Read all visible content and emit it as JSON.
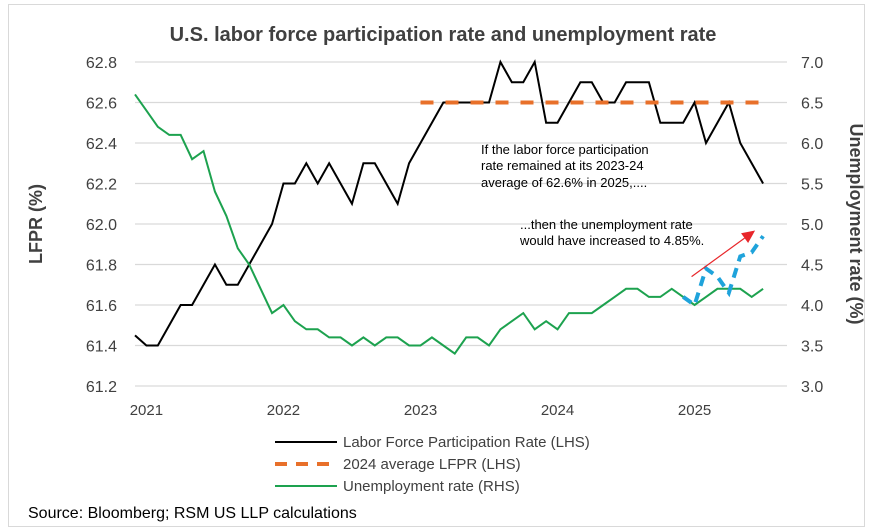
{
  "chart_data": {
    "type": "line",
    "title": "U.S. labor force participation rate and unemployment rate",
    "ylabel_left": "LFPR (%)",
    "ylabel_right": "Unemployment rate (%)",
    "ylim_left": [
      61.2,
      62.8
    ],
    "ylim_right": [
      3.0,
      7.0
    ],
    "yticks_left": [
      "62.8",
      "62.6",
      "62.4",
      "62.2",
      "62.0",
      "61.8",
      "61.6",
      "61.4",
      "61.2"
    ],
    "yticks_right": [
      "7.0",
      "6.5",
      "6.0",
      "5.5",
      "5.0",
      "4.5",
      "4.0",
      "3.5",
      "3.0"
    ],
    "xticks": [
      "2021",
      "2022",
      "2023",
      "2024",
      "2025"
    ],
    "grid": true,
    "legend_position": "bottom",
    "start_month": "2020-12",
    "series": [
      {
        "name": "Labor Force Participation Rate (LHS)",
        "axis": "left",
        "color": "#000000",
        "style": "solid",
        "start": "2020-12",
        "values": [
          61.45,
          61.4,
          61.4,
          61.5,
          61.6,
          61.6,
          61.7,
          61.8,
          61.7,
          61.7,
          61.8,
          61.9,
          62.0,
          62.2,
          62.2,
          62.3,
          62.2,
          62.3,
          62.2,
          62.1,
          62.3,
          62.3,
          62.2,
          62.1,
          62.3,
          62.4,
          62.5,
          62.6,
          62.6,
          62.6,
          62.6,
          62.6,
          62.8,
          62.7,
          62.7,
          62.8,
          62.5,
          62.5,
          62.6,
          62.7,
          62.7,
          62.6,
          62.6,
          62.7,
          62.7,
          62.7,
          62.5,
          62.5,
          62.5,
          62.6,
          62.4,
          62.5,
          62.6,
          62.4,
          62.3,
          62.2
        ]
      },
      {
        "name": "2024 average LFPR (LHS)",
        "axis": "left",
        "color": "#E8702A",
        "style": "dashed",
        "start": "2023-01",
        "values_constant": 62.6,
        "end": "2025-07"
      },
      {
        "name": "Unemployment rate (RHS)",
        "axis": "right",
        "color": "#1DA24F",
        "style": "solid",
        "start": "2020-12",
        "values": [
          6.6,
          6.4,
          6.2,
          6.1,
          6.1,
          5.8,
          5.9,
          5.4,
          5.1,
          4.7,
          4.5,
          4.2,
          3.9,
          4.0,
          3.8,
          3.7,
          3.7,
          3.6,
          3.6,
          3.5,
          3.6,
          3.5,
          3.6,
          3.6,
          3.5,
          3.5,
          3.6,
          3.5,
          3.4,
          3.6,
          3.6,
          3.5,
          3.7,
          3.8,
          3.9,
          3.7,
          3.8,
          3.7,
          3.9,
          3.9,
          3.9,
          4.0,
          4.1,
          4.2,
          4.2,
          4.1,
          4.1,
          4.2,
          4.1,
          4.0,
          4.1,
          4.2,
          4.2,
          4.2,
          4.1,
          4.2
        ]
      },
      {
        "axis": "right",
        "color": "#1FA3DB",
        "style": "dashed",
        "start": "2024-12",
        "values": [
          4.1,
          4.0,
          4.45,
          4.35,
          4.15,
          4.6,
          4.65,
          4.85
        ]
      }
    ],
    "annotations": [
      {
        "text_lines": [
          "If the labor force participation",
          "rate remained at its 2023-24",
          "average of 62.6% in 2025,...."
        ]
      },
      {
        "text_lines": [
          "...then the unemployment rate",
          "would have increased to 4.85%."
        ]
      }
    ],
    "arrow": {
      "color": "#E8262A",
      "from": [
        "2025-01",
        4.35
      ],
      "to": [
        "2025-07",
        4.92
      ]
    }
  },
  "source": "Source: Bloomberg; RSM US LLP calculations"
}
